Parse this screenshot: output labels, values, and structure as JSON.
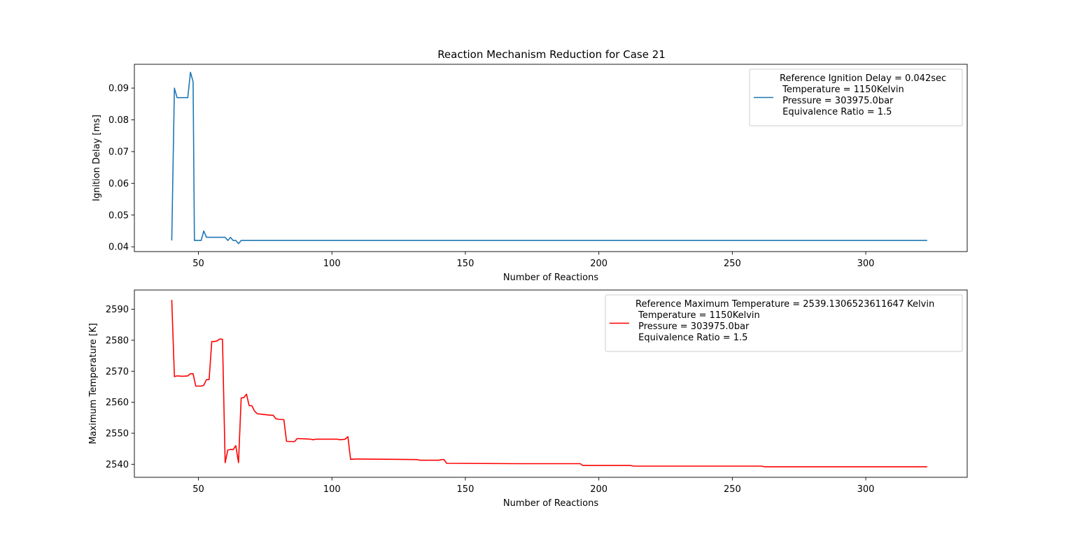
{
  "title": "Reaction Mechanism Reduction for Case 21",
  "chart_data": [
    {
      "type": "line",
      "xlabel": "Number of Reactions",
      "ylabel": "Ignition Delay [ms]",
      "xlim": [
        26,
        338
      ],
      "ylim": [
        0.0385,
        0.0975
      ],
      "xticks": [
        50,
        100,
        150,
        200,
        250,
        300
      ],
      "yticks": [
        0.04,
        0.05,
        0.06,
        0.07,
        0.08,
        0.09
      ],
      "ytick_labels": [
        "0.04",
        "0.05",
        "0.06",
        "0.07",
        "0.08",
        "0.09"
      ],
      "grid": false,
      "legend_position": "top-right",
      "series": [
        {
          "name": "Reference Ignition Delay = 0.042sec\n Temperature = 1150Kelvin\n Pressure = 303975.0bar\n Equivalence Ratio = 1.5",
          "color": "#1f77b4",
          "points": [
            [
              40,
              0.042
            ],
            [
              41,
              0.09
            ],
            [
              42,
              0.087
            ],
            [
              46,
              0.087
            ],
            [
              47,
              0.095
            ],
            [
              48,
              0.092
            ],
            [
              48.5,
              0.042
            ],
            [
              51,
              0.042
            ],
            [
              52,
              0.045
            ],
            [
              53,
              0.043
            ],
            [
              60,
              0.043
            ],
            [
              61,
              0.042
            ],
            [
              62,
              0.043
            ],
            [
              63,
              0.042
            ],
            [
              64,
              0.042
            ],
            [
              65,
              0.041
            ],
            [
              66,
              0.042
            ],
            [
              323,
              0.042
            ]
          ]
        }
      ]
    },
    {
      "type": "line",
      "xlabel": "Number of Reactions",
      "ylabel": "Maximum Temperature [K]",
      "xlim": [
        26,
        338
      ],
      "ylim": [
        2535.8,
        2596.2
      ],
      "xticks": [
        50,
        100,
        150,
        200,
        250,
        300
      ],
      "yticks": [
        2540,
        2550,
        2560,
        2570,
        2580,
        2590
      ],
      "ytick_labels": [
        "2540",
        "2550",
        "2560",
        "2570",
        "2580",
        "2590"
      ],
      "grid": false,
      "legend_position": "top-right",
      "series": [
        {
          "name": "Reference Maximum Temperature = 2539.1306523611647 Kelvin\n Temperature = 1150Kelvin\n Pressure = 303975.0bar\n Equivalence Ratio = 1.5",
          "color": "#ff0000",
          "points": [
            [
              40,
              2593
            ],
            [
              41,
              2568.3
            ],
            [
              42,
              2568.5
            ],
            [
              44,
              2568.4
            ],
            [
              46,
              2568.5
            ],
            [
              47,
              2569.2
            ],
            [
              48,
              2569.2
            ],
            [
              49,
              2565.2
            ],
            [
              51,
              2565.2
            ],
            [
              52,
              2565.5
            ],
            [
              53,
              2567.3
            ],
            [
              54,
              2567.3
            ],
            [
              55,
              2579.6
            ],
            [
              56,
              2579.6
            ],
            [
              57,
              2579.8
            ],
            [
              58,
              2580.4
            ],
            [
              59,
              2580.3
            ],
            [
              60,
              2540.5
            ],
            [
              61,
              2544.6
            ],
            [
              62,
              2544.8
            ],
            [
              63,
              2544.7
            ],
            [
              64,
              2546
            ],
            [
              65,
              2540.5
            ],
            [
              66,
              2561.4
            ],
            [
              67,
              2561.5
            ],
            [
              68,
              2562.6
            ],
            [
              69,
              2558.9
            ],
            [
              70,
              2558.9
            ],
            [
              71,
              2557.2
            ],
            [
              72,
              2556.3
            ],
            [
              74,
              2556.1
            ],
            [
              76,
              2555.9
            ],
            [
              78,
              2555.8
            ],
            [
              79,
              2554.7
            ],
            [
              80,
              2554.5
            ],
            [
              82,
              2554.4
            ],
            [
              83,
              2547.4
            ],
            [
              86,
              2547.3
            ],
            [
              87,
              2548.3
            ],
            [
              92,
              2548.1
            ],
            [
              93,
              2547.9
            ],
            [
              94,
              2548.1
            ],
            [
              102,
              2548.1
            ],
            [
              103,
              2547.9
            ],
            [
              105,
              2548.1
            ],
            [
              106,
              2548.9
            ],
            [
              107,
              2541.6
            ],
            [
              109,
              2541.7
            ],
            [
              124,
              2541.6
            ],
            [
              132,
              2541.5
            ],
            [
              133,
              2541.3
            ],
            [
              140,
              2541.3
            ],
            [
              141,
              2541.5
            ],
            [
              142,
              2541.5
            ],
            [
              143,
              2540.3
            ],
            [
              170,
              2540.2
            ],
            [
              193,
              2540.2
            ],
            [
              194,
              2539.6
            ],
            [
              212,
              2539.6
            ],
            [
              213,
              2539.4
            ],
            [
              261,
              2539.4
            ],
            [
              262,
              2539.2
            ],
            [
              323,
              2539.2
            ]
          ]
        }
      ]
    }
  ]
}
